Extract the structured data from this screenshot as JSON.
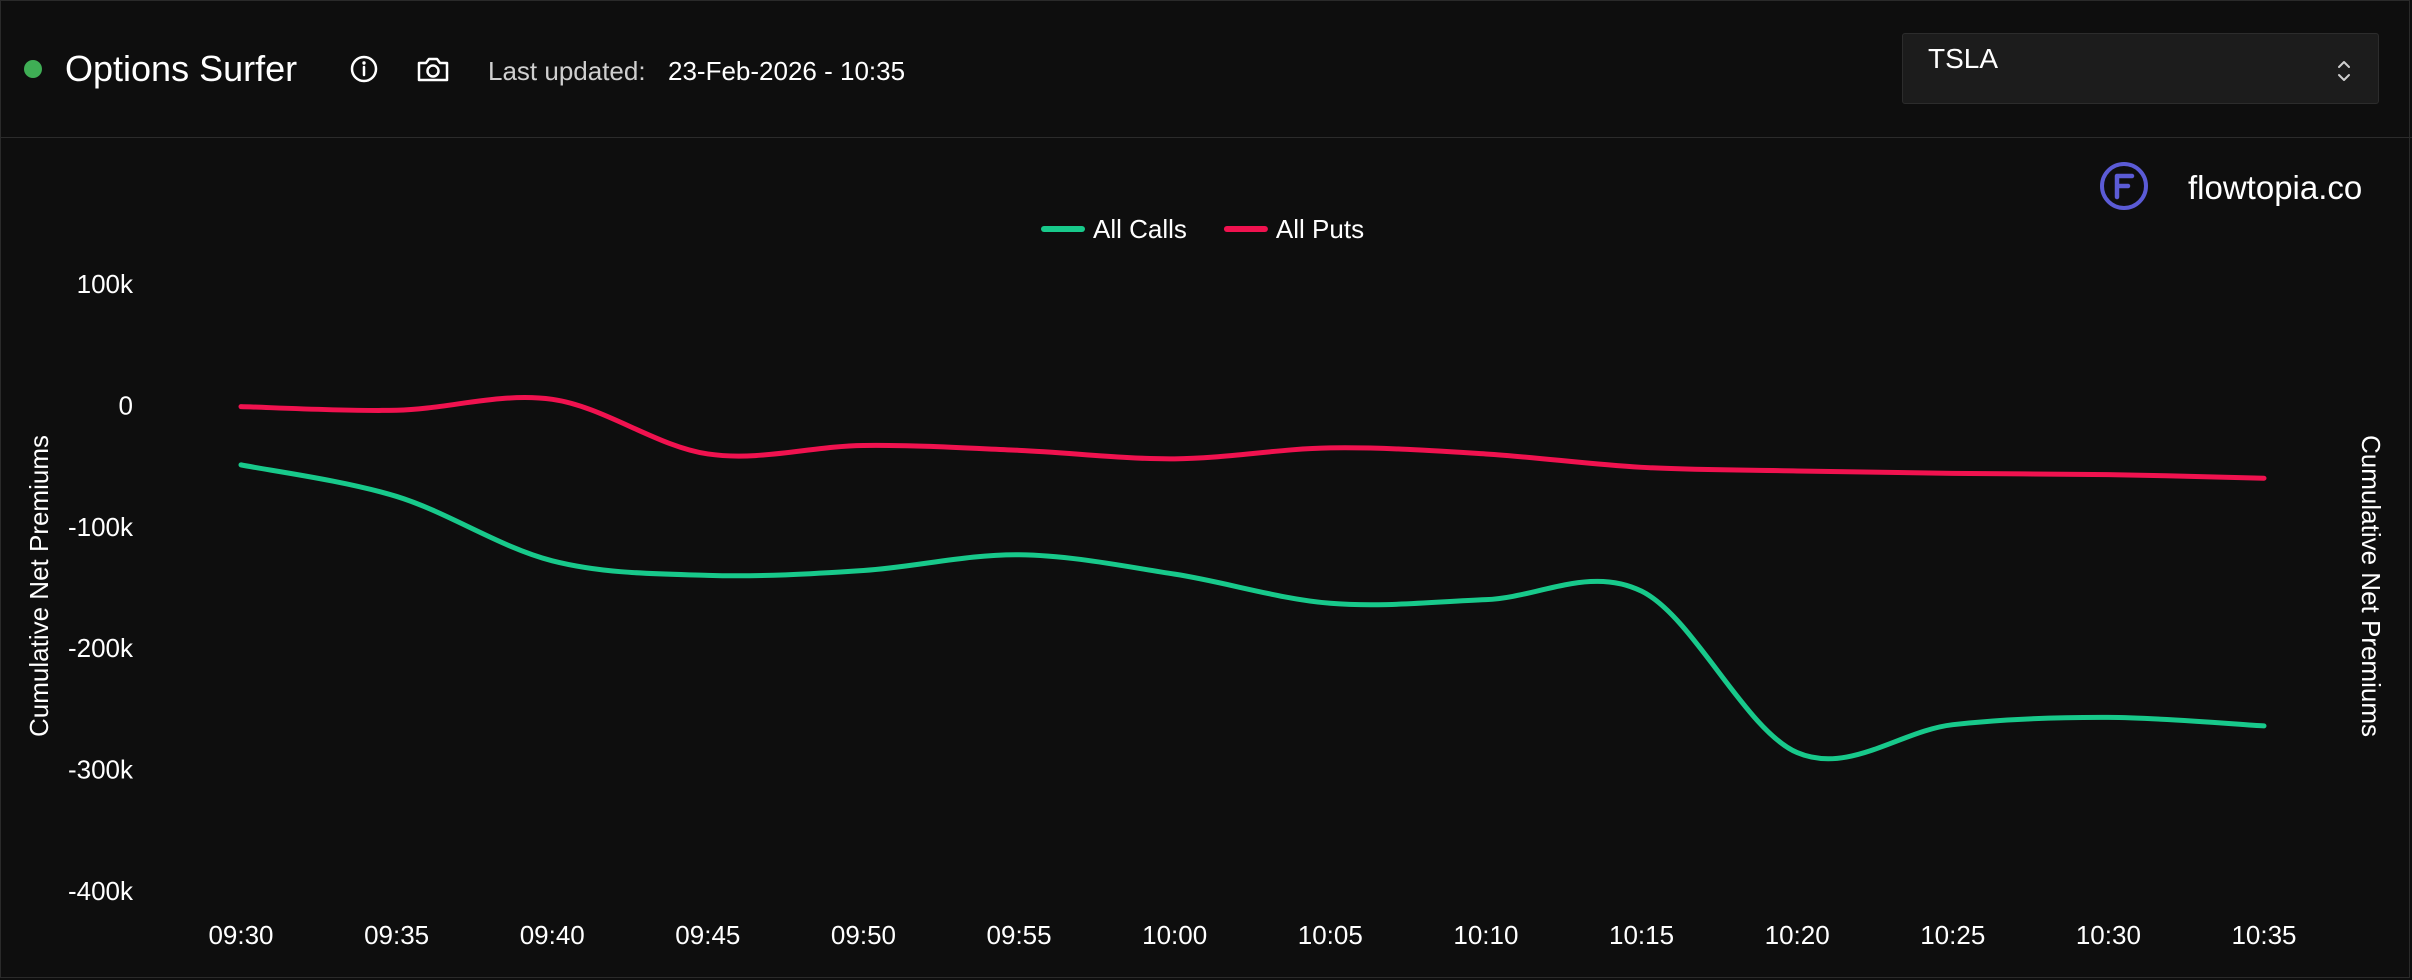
{
  "header": {
    "app_title": "Options Surfer",
    "status_color": "#3fae55",
    "info_icon": "info-icon",
    "camera_icon": "camera-icon",
    "last_updated_label": "Last updated:",
    "last_updated_value": "23-Feb-2026 - 10:35"
  },
  "ticker_select": {
    "value": "TSLA",
    "icon": "chevron-up-down-icon"
  },
  "brand": {
    "logo_icon": "flowtopia-logo-icon",
    "name": "flowtopia.co",
    "logo_color": "#5b5bd6"
  },
  "chart_data": {
    "type": "line",
    "x": [
      "09:30",
      "09:35",
      "09:40",
      "09:45",
      "09:50",
      "09:55",
      "10:00",
      "10:05",
      "10:10",
      "10:15",
      "10:20",
      "10:25",
      "10:30",
      "10:35"
    ],
    "series": [
      {
        "name": "All Calls",
        "color": "#18c98b",
        "values": [
          -49000,
          -75000,
          -128000,
          -140000,
          -136000,
          -123000,
          -139000,
          -163000,
          -160000,
          -153000,
          -286000,
          -263000,
          -257000,
          -264000
        ]
      },
      {
        "name": "All Puts",
        "color": "#f0124f",
        "values": [
          -1000,
          -4000,
          5000,
          -40000,
          -33000,
          -37000,
          -44000,
          -35000,
          -40000,
          -51000,
          -54000,
          -56000,
          -57000,
          -60000
        ]
      }
    ],
    "ylim": [
      -400000,
      100000
    ],
    "yticks": [
      100000,
      0,
      -100000,
      -200000,
      -300000,
      -400000
    ],
    "ytick_labels": [
      "100k",
      "0",
      "-100k",
      "-200k",
      "-300k",
      "-400k"
    ],
    "ylabel_left": "Cumulative Net Premiums",
    "ylabel_right": "Cumulative Net Premiums",
    "legend_position": "top-center",
    "grid": false
  }
}
